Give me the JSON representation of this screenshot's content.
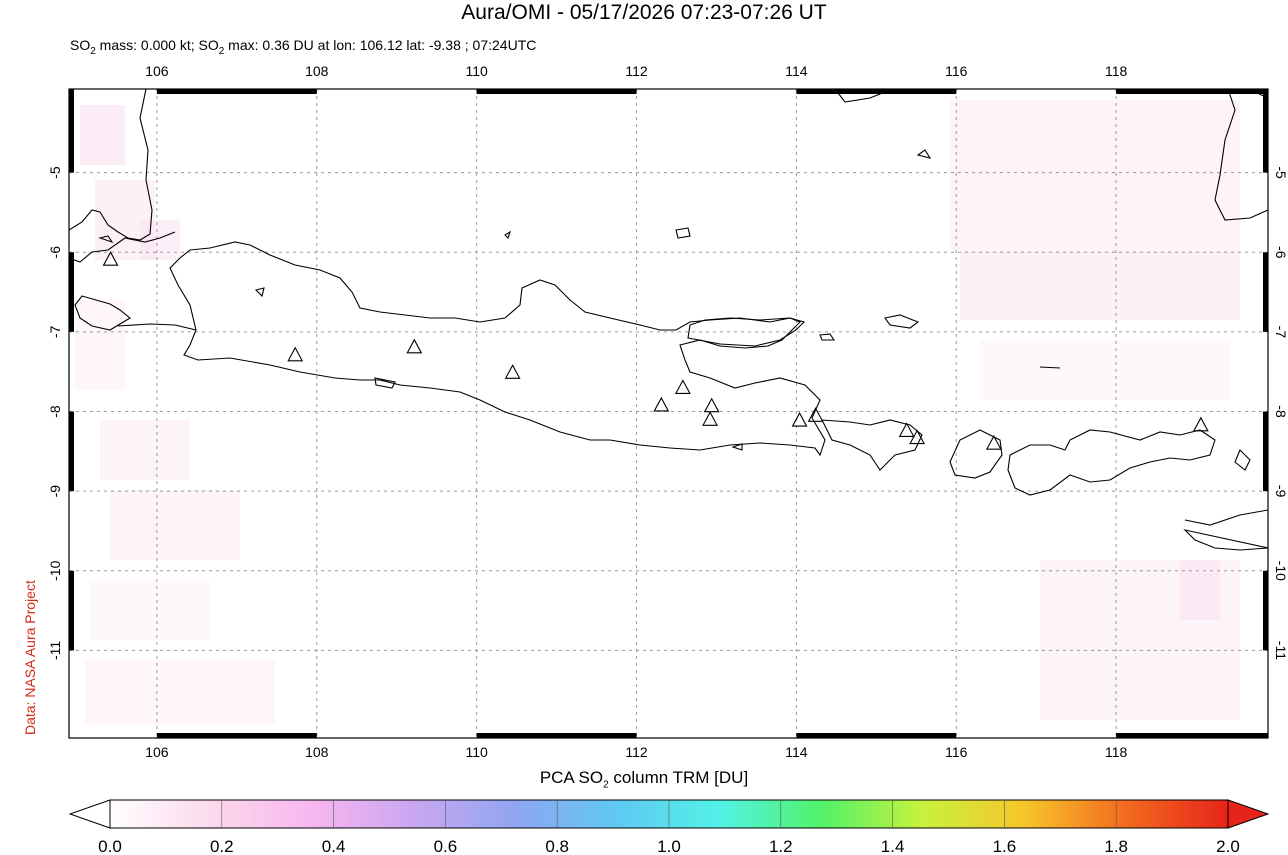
{
  "title": "Aura/OMI - 05/17/2026 07:23-07:26 UT",
  "subtitle": {
    "prefix": "SO",
    "sub": "2",
    "mass_text": " mass: 0.000 kt; SO",
    "sub2": "2",
    "rest": " max: 0.36 DU at lon: 106.12 lat: -9.38 ; 07:24UTC"
  },
  "credit": "Data: NASA Aura Project",
  "colorbar": {
    "label_pre": "PCA SO",
    "label_sub": "2",
    "label_post": " column TRM [DU]",
    "ticks": [
      "0.0",
      "0.2",
      "0.4",
      "0.6",
      "0.8",
      "1.0",
      "1.2",
      "1.4",
      "1.6",
      "1.8",
      "2.0"
    ],
    "stops": [
      "#ffffff",
      "#fcd9ec",
      "#f7b6f0",
      "#c9a6f0",
      "#8fa6f2",
      "#5fc9f2",
      "#52f2e6",
      "#52f26a",
      "#c7f23c",
      "#f7c52a",
      "#f26a1f",
      "#e6241a"
    ]
  },
  "map": {
    "lon_range": [
      104.9,
      119.9
    ],
    "lat_range": [
      -12.1,
      -3.95
    ],
    "lon_ticks": [
      106,
      108,
      110,
      112,
      114,
      116,
      118
    ],
    "lat_ticks": [
      -5,
      -6,
      -7,
      -8,
      -9,
      -10,
      -11
    ],
    "volcanoes": [
      {
        "lon": 105.42,
        "lat": -6.1
      },
      {
        "lon": 107.73,
        "lat": -7.3
      },
      {
        "lon": 109.22,
        "lat": -7.2
      },
      {
        "lon": 110.45,
        "lat": -7.52
      },
      {
        "lon": 112.31,
        "lat": -7.93
      },
      {
        "lon": 112.58,
        "lat": -7.71
      },
      {
        "lon": 112.94,
        "lat": -7.94
      },
      {
        "lon": 112.92,
        "lat": -8.11
      },
      {
        "lon": 114.04,
        "lat": -8.12
      },
      {
        "lon": 114.24,
        "lat": -8.06
      },
      {
        "lon": 115.38,
        "lat": -8.25
      },
      {
        "lon": 115.51,
        "lat": -8.34
      },
      {
        "lon": 116.47,
        "lat": -8.41
      },
      {
        "lon": 119.06,
        "lat": -8.18
      }
    ]
  }
}
